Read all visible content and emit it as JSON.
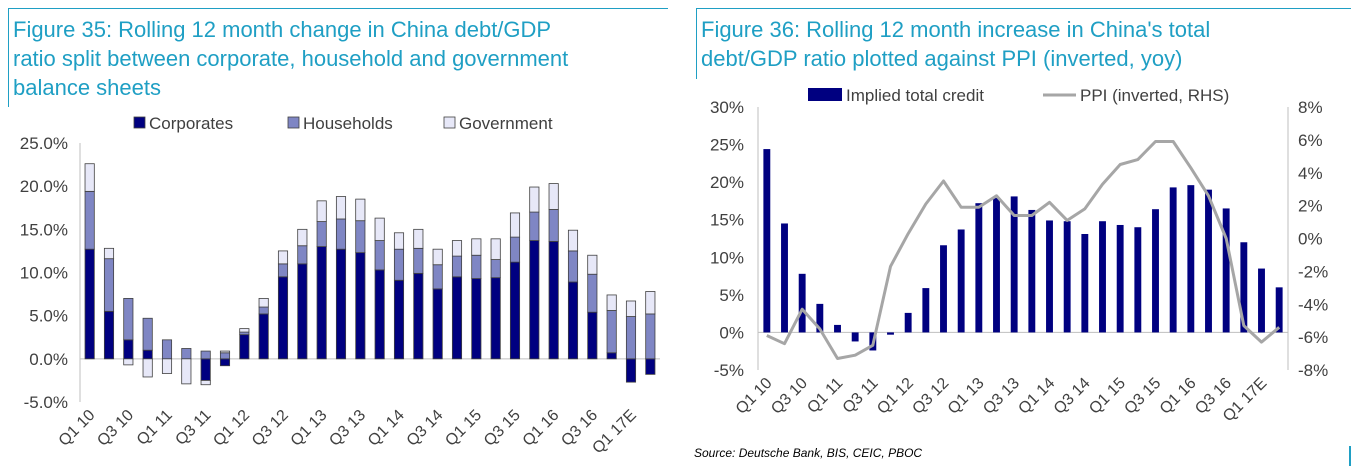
{
  "left": {
    "title_lines": [
      "Figure 35: Rolling 12 month change in China debt/GDP",
      "ratio split between corporate, household and government",
      "balance sheets"
    ]
  },
  "right": {
    "title_lines": [
      "Figure 36: Rolling 12 month increase in China's total",
      "debt/GDP ratio plotted against PPI (inverted, yoy)"
    ],
    "source": "Source: Deutsche Bank, BIS, CEIC, PBOC"
  },
  "colors": {
    "accent": "#1f9fc4",
    "navy": "#000080",
    "medium": "#7f86c4",
    "light": "#e7e8f8",
    "ppi": "#a6a6a6"
  },
  "chart_data": [
    {
      "type": "bar",
      "stacked": true,
      "title": "Figure 35: Rolling 12 month change in China debt/GDP ratio split between corporate, household and government balance sheets",
      "categories": [
        "Q1 10",
        "Q2 10",
        "Q3 10",
        "Q4 10",
        "Q1 11",
        "Q2 11",
        "Q3 11",
        "Q4 11",
        "Q1 12",
        "Q2 12",
        "Q3 12",
        "Q4 12",
        "Q1 13",
        "Q2 13",
        "Q3 13",
        "Q4 13",
        "Q1 14",
        "Q2 14",
        "Q3 14",
        "Q4 14",
        "Q1 15",
        "Q2 15",
        "Q3 15",
        "Q4 15",
        "Q1 16",
        "Q2 16",
        "Q3 16",
        "Q4 16",
        "Q1 17E",
        "Q2 17E"
      ],
      "tick_labels": [
        "Q1 10",
        "Q3 10",
        "Q1 11",
        "Q3 11",
        "Q1 12",
        "Q3 12",
        "Q1 13",
        "Q3 13",
        "Q1 14",
        "Q3 14",
        "Q1 15",
        "Q3 15",
        "Q1 16",
        "Q3 16",
        "Q1 17E"
      ],
      "series": [
        {
          "name": "Corporates",
          "values": [
            12.7,
            5.5,
            2.2,
            1.0,
            0.0,
            0.0,
            -2.5,
            -0.8,
            2.8,
            5.2,
            9.5,
            11.0,
            13.0,
            12.7,
            12.3,
            10.3,
            9.1,
            9.9,
            8.1,
            9.5,
            9.3,
            9.4,
            11.2,
            13.7,
            13.6,
            8.9,
            5.4,
            0.7,
            -2.7,
            -1.8
          ]
        },
        {
          "name": "Households",
          "values": [
            6.7,
            6.1,
            4.8,
            3.7,
            2.2,
            1.2,
            0.9,
            0.7,
            0.3,
            0.8,
            1.5,
            2.1,
            2.9,
            3.5,
            3.7,
            3.4,
            3.6,
            2.9,
            2.8,
            2.4,
            2.7,
            2.1,
            2.9,
            3.3,
            3.7,
            3.6,
            4.4,
            4.9,
            4.9,
            5.2
          ]
        },
        {
          "name": "Government",
          "values": [
            3.2,
            1.2,
            -0.7,
            -2.1,
            -1.7,
            -2.9,
            -0.5,
            0.2,
            0.4,
            1.0,
            1.5,
            1.9,
            2.4,
            2.6,
            2.5,
            2.6,
            1.9,
            2.2,
            1.8,
            1.8,
            1.9,
            2.4,
            2.8,
            2.9,
            3.0,
            2.4,
            2.2,
            1.8,
            1.8,
            2.6
          ]
        }
      ],
      "ylim": [
        -5.0,
        25.0
      ],
      "ytick_labels": [
        "-5.0%",
        "0.0%",
        "5.0%",
        "10.0%",
        "15.0%",
        "20.0%",
        "25.0%"
      ],
      "legend_position": "top"
    },
    {
      "type": "bar+line",
      "title": "Figure 36: Rolling 12 month increase in China's total debt/GDP ratio plotted against PPI (inverted, yoy)",
      "categories": [
        "Q1 10",
        "Q2 10",
        "Q3 10",
        "Q4 10",
        "Q1 11",
        "Q2 11",
        "Q3 11",
        "Q4 11",
        "Q1 12",
        "Q2 12",
        "Q3 12",
        "Q4 12",
        "Q1 13",
        "Q2 13",
        "Q3 13",
        "Q4 13",
        "Q1 14",
        "Q2 14",
        "Q3 14",
        "Q4 14",
        "Q1 15",
        "Q2 15",
        "Q3 15",
        "Q4 15",
        "Q1 16",
        "Q2 16",
        "Q3 16",
        "Q4 16",
        "Q1 17E",
        "Q2 17E"
      ],
      "tick_labels": [
        "Q1 10",
        "Q3 10",
        "Q1 11",
        "Q3 11",
        "Q1 12",
        "Q3 12",
        "Q1 13",
        "Q3 13",
        "Q1 14",
        "Q3 14",
        "Q1 15",
        "Q3 15",
        "Q1 16",
        "Q3 16",
        "Q1 17E"
      ],
      "series": [
        {
          "name": "Implied total credit",
          "axis": "left",
          "type": "bar",
          "values": [
            24.4,
            14.5,
            7.8,
            3.8,
            1.0,
            -1.2,
            -2.4,
            -0.3,
            2.6,
            5.9,
            11.6,
            13.7,
            17.2,
            17.9,
            18.1,
            16.3,
            14.9,
            14.8,
            13.1,
            14.8,
            14.3,
            14.0,
            16.4,
            19.3,
            19.6,
            19.0,
            16.5,
            12.0,
            8.5,
            6.0
          ]
        },
        {
          "name": "PPI (inverted, RHS)",
          "axis": "right",
          "type": "line",
          "values": [
            -5.9,
            -6.4,
            -4.3,
            -5.5,
            -7.3,
            -7.1,
            -6.5,
            -1.7,
            0.3,
            2.1,
            3.5,
            1.9,
            1.9,
            2.6,
            1.4,
            1.4,
            2.2,
            1.1,
            1.8,
            3.3,
            4.5,
            4.8,
            5.9,
            5.9,
            4.3,
            2.6,
            0.0,
            -5.3,
            -6.3,
            -5.4
          ]
        }
      ],
      "ylim": [
        -5,
        30
      ],
      "ytick_labels": [
        "-5%",
        "0%",
        "5%",
        "10%",
        "15%",
        "20%",
        "25%",
        "30%"
      ],
      "y2lim": [
        -8,
        8
      ],
      "y2tick_labels": [
        "-8%",
        "-6%",
        "-4%",
        "-2%",
        "0%",
        "2%",
        "4%",
        "6%",
        "8%"
      ],
      "legend_position": "top"
    }
  ]
}
